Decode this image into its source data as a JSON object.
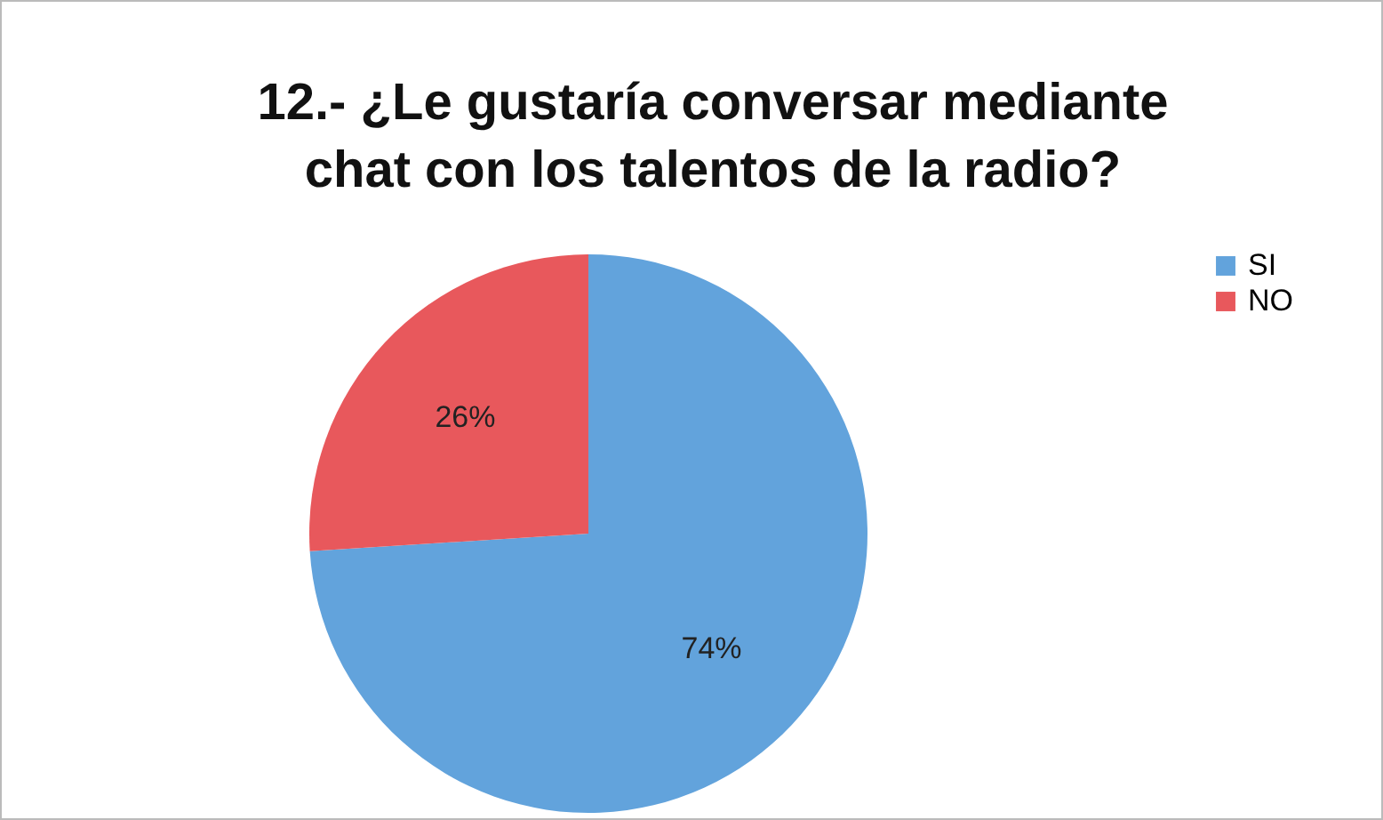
{
  "chart_data": {
    "type": "pie",
    "title": "12.- ¿Le gustaría conversar mediante chat con los talentos de la radio?",
    "categories": [
      "SI",
      "NO"
    ],
    "values": [
      74,
      26
    ],
    "colors": [
      "#62a3dc",
      "#e8585c"
    ],
    "value_labels": [
      "74%",
      "26%"
    ],
    "legend": "right"
  }
}
